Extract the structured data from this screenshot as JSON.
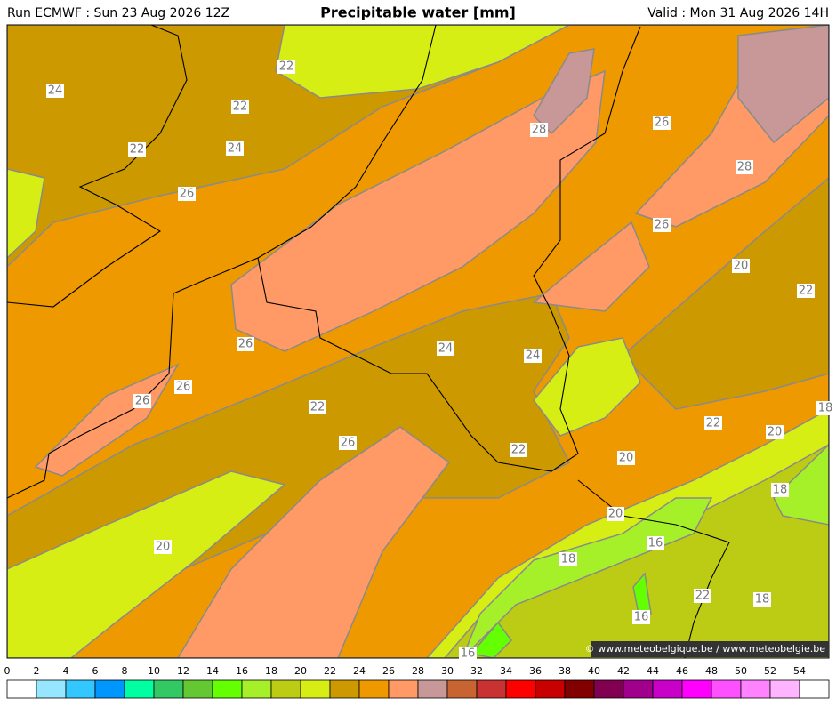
{
  "header": {
    "run": "Run ECMWF : Sun 23 Aug 2026 12Z",
    "title": "Precipitable water [mm]",
    "valid": "Valid : Mon 31 Aug 2026 14H"
  },
  "contour_labels": [
    "24",
    "22",
    "22",
    "22",
    "24",
    "26",
    "28",
    "26",
    "28",
    "26",
    "20",
    "22",
    "26",
    "24",
    "24",
    "26",
    "26",
    "22",
    "26",
    "22",
    "22",
    "20",
    "20",
    "18",
    "20",
    "16",
    "18",
    "20",
    "22",
    "18",
    "16",
    "16",
    "18"
  ],
  "credit": "© www.meteobelgique.be / www.meteobelgie.be",
  "colorbar": {
    "ticks": [
      0,
      2,
      4,
      6,
      8,
      10,
      12,
      14,
      16,
      18,
      20,
      22,
      24,
      26,
      28,
      30,
      32,
      34,
      36,
      38,
      40,
      42,
      44,
      46,
      48,
      50,
      52,
      54
    ],
    "colors": [
      "#ffffff",
      "#96e6ff",
      "#32c8ff",
      "#0096ff",
      "#00ffa0",
      "#32c864",
      "#64c832",
      "#64ff00",
      "#a6f02a",
      "#bccc14",
      "#d6ee14",
      "#cc9900",
      "#ee9900",
      "#ff9966",
      "#c89898",
      "#c86432",
      "#c83232",
      "#ff0000",
      "#c80000",
      "#820000",
      "#820050",
      "#a0008c",
      "#c800c8",
      "#ff00ff",
      "#ff50ff",
      "#ff82ff",
      "#ffb4ff",
      "#ffffff"
    ]
  }
}
